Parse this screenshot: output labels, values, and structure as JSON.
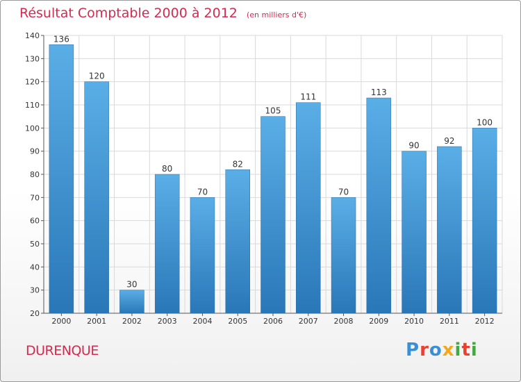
{
  "header": {
    "title": "Résultat Comptable 2000 à 2012",
    "subtitle": "(en milliers d'€)"
  },
  "footer": {
    "place": "DURENQUE",
    "brand": "Proxiti"
  },
  "colors": {
    "bar_top": "#5aaee6",
    "bar_bottom": "#2a77b8",
    "title": "#d42a4f",
    "grid": "#d9d9d9"
  },
  "chart_data": {
    "type": "bar",
    "title": "Résultat Comptable 2000 à 2012",
    "subtitle": "(en milliers d'€)",
    "categories": [
      "2000",
      "2001",
      "2002",
      "2003",
      "2004",
      "2005",
      "2006",
      "2007",
      "2008",
      "2009",
      "2010",
      "2011",
      "2012"
    ],
    "values": [
      136,
      120,
      30,
      80,
      70,
      82,
      105,
      111,
      70,
      113,
      90,
      92,
      100
    ],
    "ylim": [
      20,
      140
    ],
    "yticks": [
      20,
      30,
      40,
      50,
      60,
      70,
      80,
      90,
      100,
      110,
      120,
      130,
      140
    ],
    "grid": true,
    "data_labels": true
  }
}
